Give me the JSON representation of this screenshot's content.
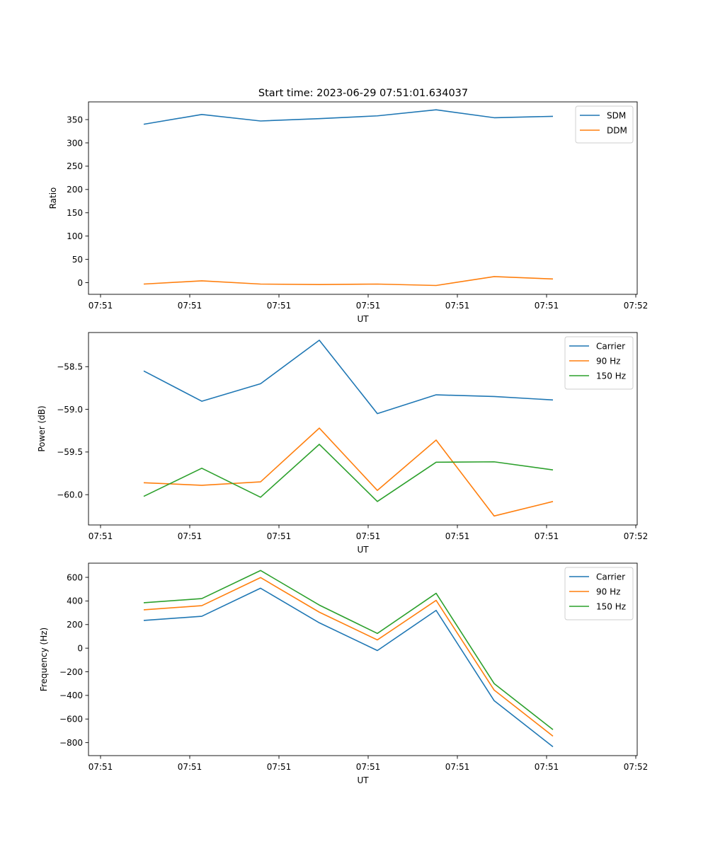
{
  "title": "Start time: 2023-06-29 07:51:01.634037",
  "colors": {
    "blue": "#1f77b4",
    "orange": "#ff7f0e",
    "green": "#2ca02c"
  },
  "chart_data": [
    {
      "type": "line",
      "xlabel": "UT",
      "ylabel": "Ratio",
      "x_tick_labels": [
        "07:51",
        "07:51",
        "07:51",
        "07:51",
        "07:51",
        "07:51",
        "07:52"
      ],
      "y_ticks": [
        "0",
        "50",
        "100",
        "150",
        "200",
        "250",
        "300",
        "350"
      ],
      "y_tick_values": [
        0,
        50,
        100,
        150,
        200,
        250,
        300,
        350
      ],
      "ylim": [
        -25,
        388
      ],
      "legend_position": "top-right",
      "series": [
        {
          "name": "SDM",
          "color": "#1f77b4",
          "values": [
            340,
            361,
            347,
            352,
            358,
            371,
            354,
            357
          ]
        },
        {
          "name": "DDM",
          "color": "#ff7f0e",
          "values": [
            -3,
            4,
            -3,
            -4,
            -3,
            -6,
            13,
            8
          ]
        }
      ]
    },
    {
      "type": "line",
      "xlabel": "UT",
      "ylabel": "Power (dB)",
      "x_tick_labels": [
        "07:51",
        "07:51",
        "07:51",
        "07:51",
        "07:51",
        "07:51",
        "07:52"
      ],
      "y_ticks": [
        "−60.0",
        "−59.5",
        "−59.0",
        "−58.5"
      ],
      "y_tick_values": [
        -60.0,
        -59.5,
        -59.0,
        -58.5
      ],
      "ylim": [
        -60.355,
        -58.1
      ],
      "legend_position": "top-right",
      "series": [
        {
          "name": "Carrier",
          "color": "#1f77b4",
          "values": [
            -58.55,
            -58.905,
            -58.7,
            -58.19,
            -59.05,
            -58.83,
            -58.85,
            -58.89
          ]
        },
        {
          "name": "90 Hz",
          "color": "#ff7f0e",
          "values": [
            -59.86,
            -59.89,
            -59.85,
            -59.22,
            -59.95,
            -59.36,
            -60.25,
            -60.08
          ]
        },
        {
          "name": "150 Hz",
          "color": "#2ca02c",
          "values": [
            -60.02,
            -59.69,
            -60.03,
            -59.41,
            -60.08,
            -59.62,
            -59.615,
            -59.71
          ]
        }
      ]
    },
    {
      "type": "line",
      "xlabel": "UT",
      "ylabel": "Frequency (Hz)",
      "x_tick_labels": [
        "07:51",
        "07:51",
        "07:51",
        "07:51",
        "07:51",
        "07:51",
        "07:52"
      ],
      "y_ticks": [
        "−800",
        "−600",
        "−400",
        "−200",
        "0",
        "200",
        "400",
        "600"
      ],
      "y_tick_values": [
        -800,
        -600,
        -400,
        -200,
        0,
        200,
        400,
        600
      ],
      "ylim": [
        -910,
        720
      ],
      "legend_position": "top-right",
      "series": [
        {
          "name": "Carrier",
          "color": "#1f77b4",
          "values": [
            235,
            270,
            508,
            215,
            -20,
            320,
            -445,
            -835
          ]
        },
        {
          "name": "90 Hz",
          "color": "#ff7f0e",
          "values": [
            325,
            360,
            598,
            305,
            70,
            405,
            -355,
            -745
          ]
        },
        {
          "name": "150 Hz",
          "color": "#2ca02c",
          "values": [
            385,
            420,
            658,
            365,
            125,
            465,
            -300,
            -690
          ]
        }
      ]
    }
  ]
}
